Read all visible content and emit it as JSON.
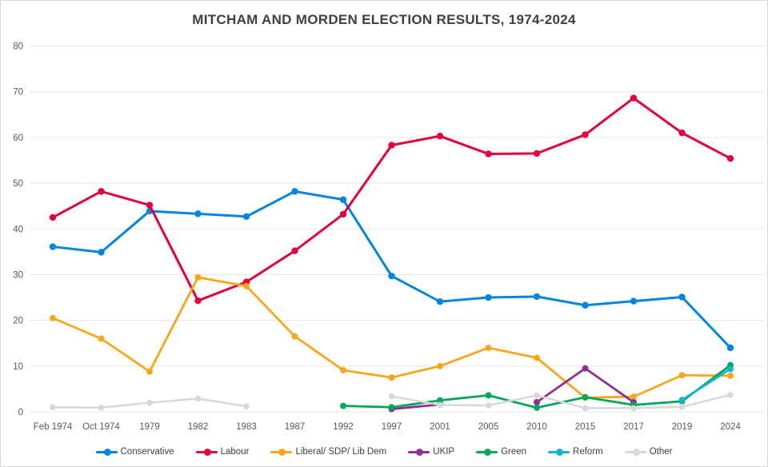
{
  "title": "MITCHAM AND MORDEN ELECTION RESULTS, 1974-2024",
  "chart_data": {
    "type": "line",
    "title": "MITCHAM AND MORDEN ELECTION RESULTS, 1974-2024",
    "xlabel": "",
    "ylabel": "",
    "ylim": [
      0,
      80
    ],
    "ytick_step": 10,
    "grid": true,
    "legend_position": "bottom",
    "categories": [
      "Feb 1974",
      "Oct 1974",
      "1979",
      "1982",
      "1983",
      "1987",
      "1992",
      "1997",
      "2001",
      "2005",
      "2010",
      "2015",
      "2017",
      "2019",
      "2024"
    ],
    "series": [
      {
        "name": "Conservative",
        "color": "#0087DC",
        "values": [
          36.1,
          34.9,
          43.9,
          43.3,
          42.7,
          48.2,
          46.4,
          29.7,
          24.1,
          25.0,
          25.2,
          23.3,
          24.2,
          25.1,
          14.0
        ]
      },
      {
        "name": "Labour",
        "color": "#E4003B",
        "values": [
          42.5,
          48.2,
          45.2,
          24.3,
          28.4,
          35.2,
          43.2,
          58.3,
          60.3,
          56.4,
          56.5,
          60.6,
          68.6,
          61.0,
          55.4
        ]
      },
      {
        "name": "Liberal/ SDP/ Lib Dem",
        "color": "#FAA61A",
        "values": [
          20.5,
          16.0,
          8.8,
          29.4,
          27.5,
          16.5,
          9.1,
          7.5,
          10.0,
          14.0,
          11.8,
          3.1,
          3.3,
          8.0,
          7.9
        ]
      },
      {
        "name": "UKIP",
        "color": "#8E3094",
        "values": [
          null,
          null,
          null,
          null,
          null,
          null,
          null,
          0.6,
          1.6,
          null,
          2.1,
          9.5,
          2.1,
          null,
          null
        ]
      },
      {
        "name": "Green",
        "color": "#00A857",
        "values": [
          null,
          null,
          null,
          null,
          null,
          null,
          1.3,
          1.0,
          2.5,
          3.6,
          0.9,
          3.2,
          1.5,
          2.3,
          10.2
        ]
      },
      {
        "name": "Reform",
        "color": "#12B6CF",
        "values": [
          null,
          null,
          null,
          null,
          null,
          null,
          null,
          null,
          null,
          null,
          null,
          null,
          null,
          2.6,
          9.4
        ]
      },
      {
        "name": "Other",
        "color": "#D8D8D8",
        "values": [
          1.0,
          0.9,
          2.0,
          2.9,
          1.2,
          null,
          null,
          3.4,
          1.5,
          1.4,
          3.6,
          0.8,
          0.8,
          1.1,
          3.7
        ]
      }
    ]
  },
  "y_axis_ticks": [
    "0",
    "10",
    "20",
    "30",
    "40",
    "50",
    "60",
    "70",
    "80"
  ]
}
